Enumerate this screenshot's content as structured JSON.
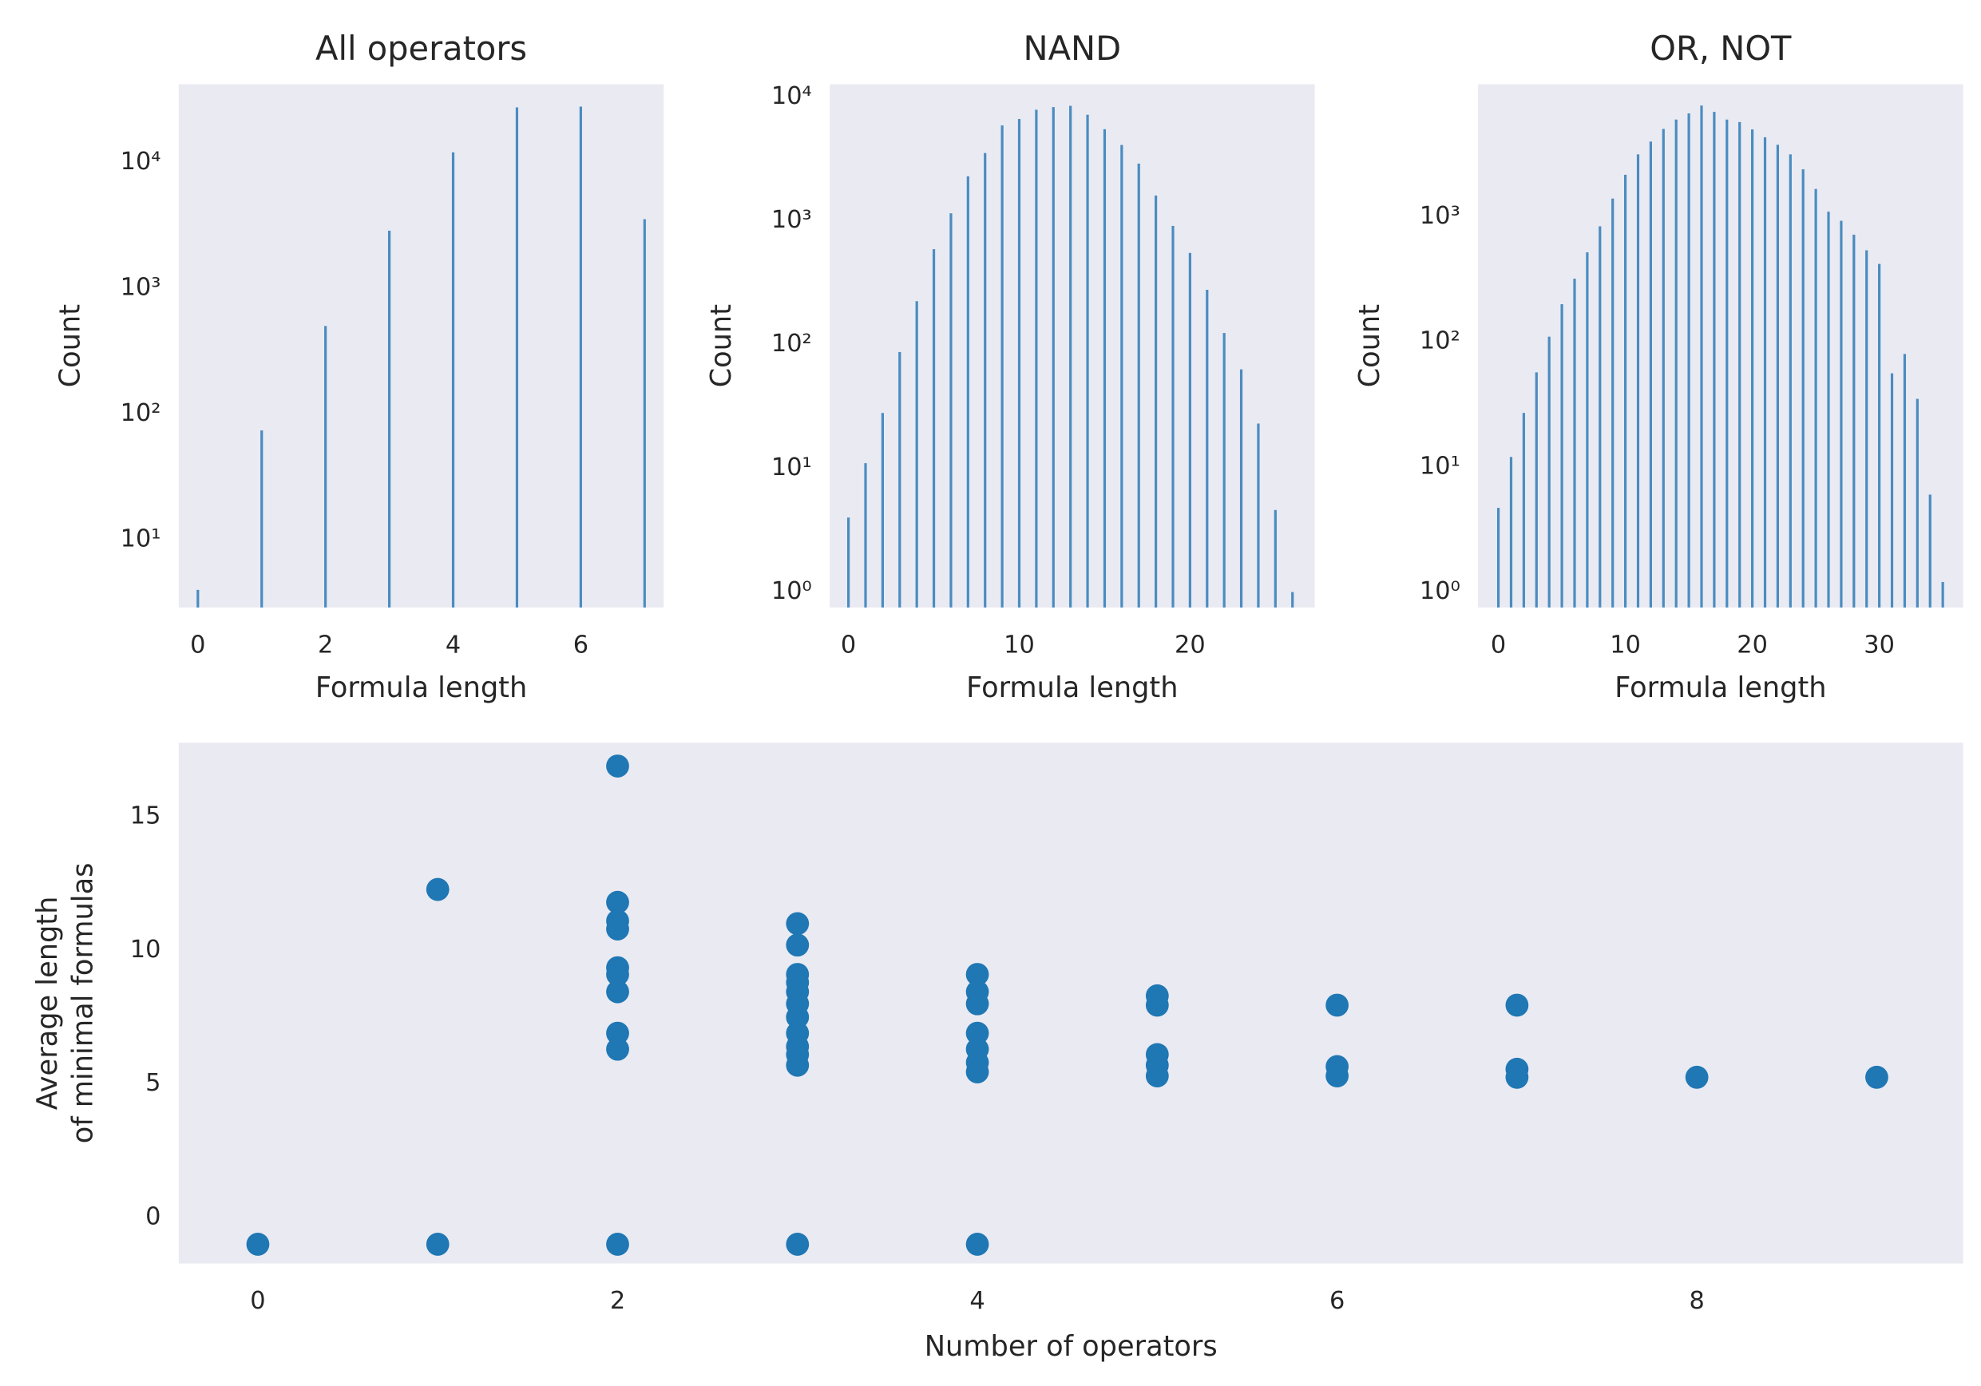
{
  "chart_data": [
    {
      "type": "bar",
      "title": "All operators",
      "xlabel": "Formula length",
      "ylabel": "Count",
      "yscale": "log",
      "color": "#4a8cc0",
      "x": [
        0,
        1,
        2,
        3,
        4,
        5,
        6,
        7
      ],
      "values": [
        4,
        74,
        500,
        2860,
        12000,
        27300,
        27700,
        3530
      ],
      "xlim": [
        -0.3,
        7.3
      ],
      "xticks": [
        0,
        2,
        4,
        6
      ],
      "ylim": [
        2.9,
        41700
      ],
      "yticks": [
        {
          "value": 10,
          "label": "10¹"
        },
        {
          "value": 100,
          "label": "10²"
        },
        {
          "value": 1000,
          "label": "10³"
        },
        {
          "value": 10000,
          "label": "10⁴"
        }
      ]
    },
    {
      "type": "bar",
      "title": "NAND",
      "xlabel": "Formula length",
      "ylabel": "Count",
      "yscale": "log",
      "color": "#4a8cc0",
      "x": [
        0,
        1,
        2,
        3,
        4,
        5,
        6,
        7,
        8,
        9,
        10,
        11,
        12,
        13,
        14,
        15,
        16,
        17,
        18,
        19,
        20,
        21,
        22,
        23,
        24,
        25,
        26
      ],
      "values": [
        4,
        11,
        28,
        87,
        224,
        590,
        1150,
        2290,
        3530,
        5900,
        6650,
        7900,
        8300,
        8500,
        7200,
        5500,
        4100,
        2900,
        1600,
        910,
        550,
        277,
        124,
        63,
        23,
        4.6,
        1
      ],
      "xlim": [
        -1.1,
        27.3
      ],
      "xticks": [
        0,
        10,
        20
      ],
      "ylim": [
        0.75,
        12700
      ],
      "yticks": [
        {
          "value": 1,
          "label": "10⁰"
        },
        {
          "value": 10,
          "label": "10¹"
        },
        {
          "value": 100,
          "label": "10²"
        },
        {
          "value": 1000,
          "label": "10³"
        },
        {
          "value": 10000,
          "label": "10⁴"
        }
      ]
    },
    {
      "type": "bar",
      "title": "OR, NOT",
      "xlabel": "Formula length",
      "ylabel": "Count",
      "yscale": "log",
      "color": "#4a8cc0",
      "x": [
        0,
        1,
        2,
        3,
        4,
        5,
        6,
        7,
        8,
        9,
        10,
        11,
        12,
        13,
        14,
        15,
        16,
        17,
        18,
        19,
        20,
        21,
        22,
        23,
        24,
        25,
        26,
        27,
        28,
        29,
        30,
        31,
        32,
        33,
        34,
        35
      ],
      "values": [
        4.7,
        12,
        27,
        57,
        110,
        200,
        320,
        520,
        840,
        1400,
        2170,
        3160,
        4000,
        5050,
        6000,
        6720,
        7770,
        6910,
        6000,
        5730,
        5000,
        4330,
        3770,
        3160,
        2400,
        1670,
        1100,
        930,
        720,
        540,
        420,
        56,
        80,
        35,
        6,
        1.2
      ],
      "xlim": [
        -1.6,
        36.6
      ],
      "xticks": [
        0,
        10,
        20,
        30
      ],
      "ylim": [
        0.75,
        11500
      ],
      "yticks": [
        {
          "value": 1,
          "label": "10⁰"
        },
        {
          "value": 10,
          "label": "10¹"
        },
        {
          "value": 100,
          "label": "10²"
        },
        {
          "value": 1000,
          "label": "10³"
        }
      ]
    },
    {
      "type": "scatter",
      "xlabel": "Number of operators",
      "ylabel": [
        "Average length",
        "of minimal formulas"
      ],
      "color": "#1f77b4",
      "x": [
        0,
        1,
        1,
        2,
        2,
        2,
        2,
        2,
        2,
        2,
        2,
        2,
        2,
        3,
        3,
        3,
        3,
        3,
        3,
        3,
        3,
        3,
        3,
        3,
        3,
        4,
        4,
        4,
        4,
        4,
        4,
        4,
        4,
        5,
        5,
        5,
        5,
        5,
        6,
        6,
        6,
        7,
        7,
        7,
        8,
        9
      ],
      "y": [
        -1,
        12.28,
        -1,
        16.9,
        11.8,
        11.1,
        10.8,
        9.35,
        9.1,
        8.45,
        6.9,
        6.3,
        -1,
        11.0,
        10.2,
        9.1,
        8.8,
        8.45,
        8.0,
        7.5,
        6.9,
        6.4,
        6.1,
        5.7,
        -1,
        9.1,
        8.45,
        8.0,
        6.9,
        6.3,
        5.8,
        5.45,
        -1,
        8.3,
        7.95,
        6.1,
        5.7,
        5.3,
        7.95,
        5.65,
        5.3,
        7.95,
        5.55,
        5.25,
        5.25,
        5.25
      ],
      "xlim": [
        -0.44,
        9.48
      ],
      "xticks": [
        0,
        2,
        4,
        6,
        8
      ],
      "ylim": [
        -1.72,
        17.77
      ],
      "yticks": [
        0,
        5,
        10,
        15
      ]
    }
  ]
}
